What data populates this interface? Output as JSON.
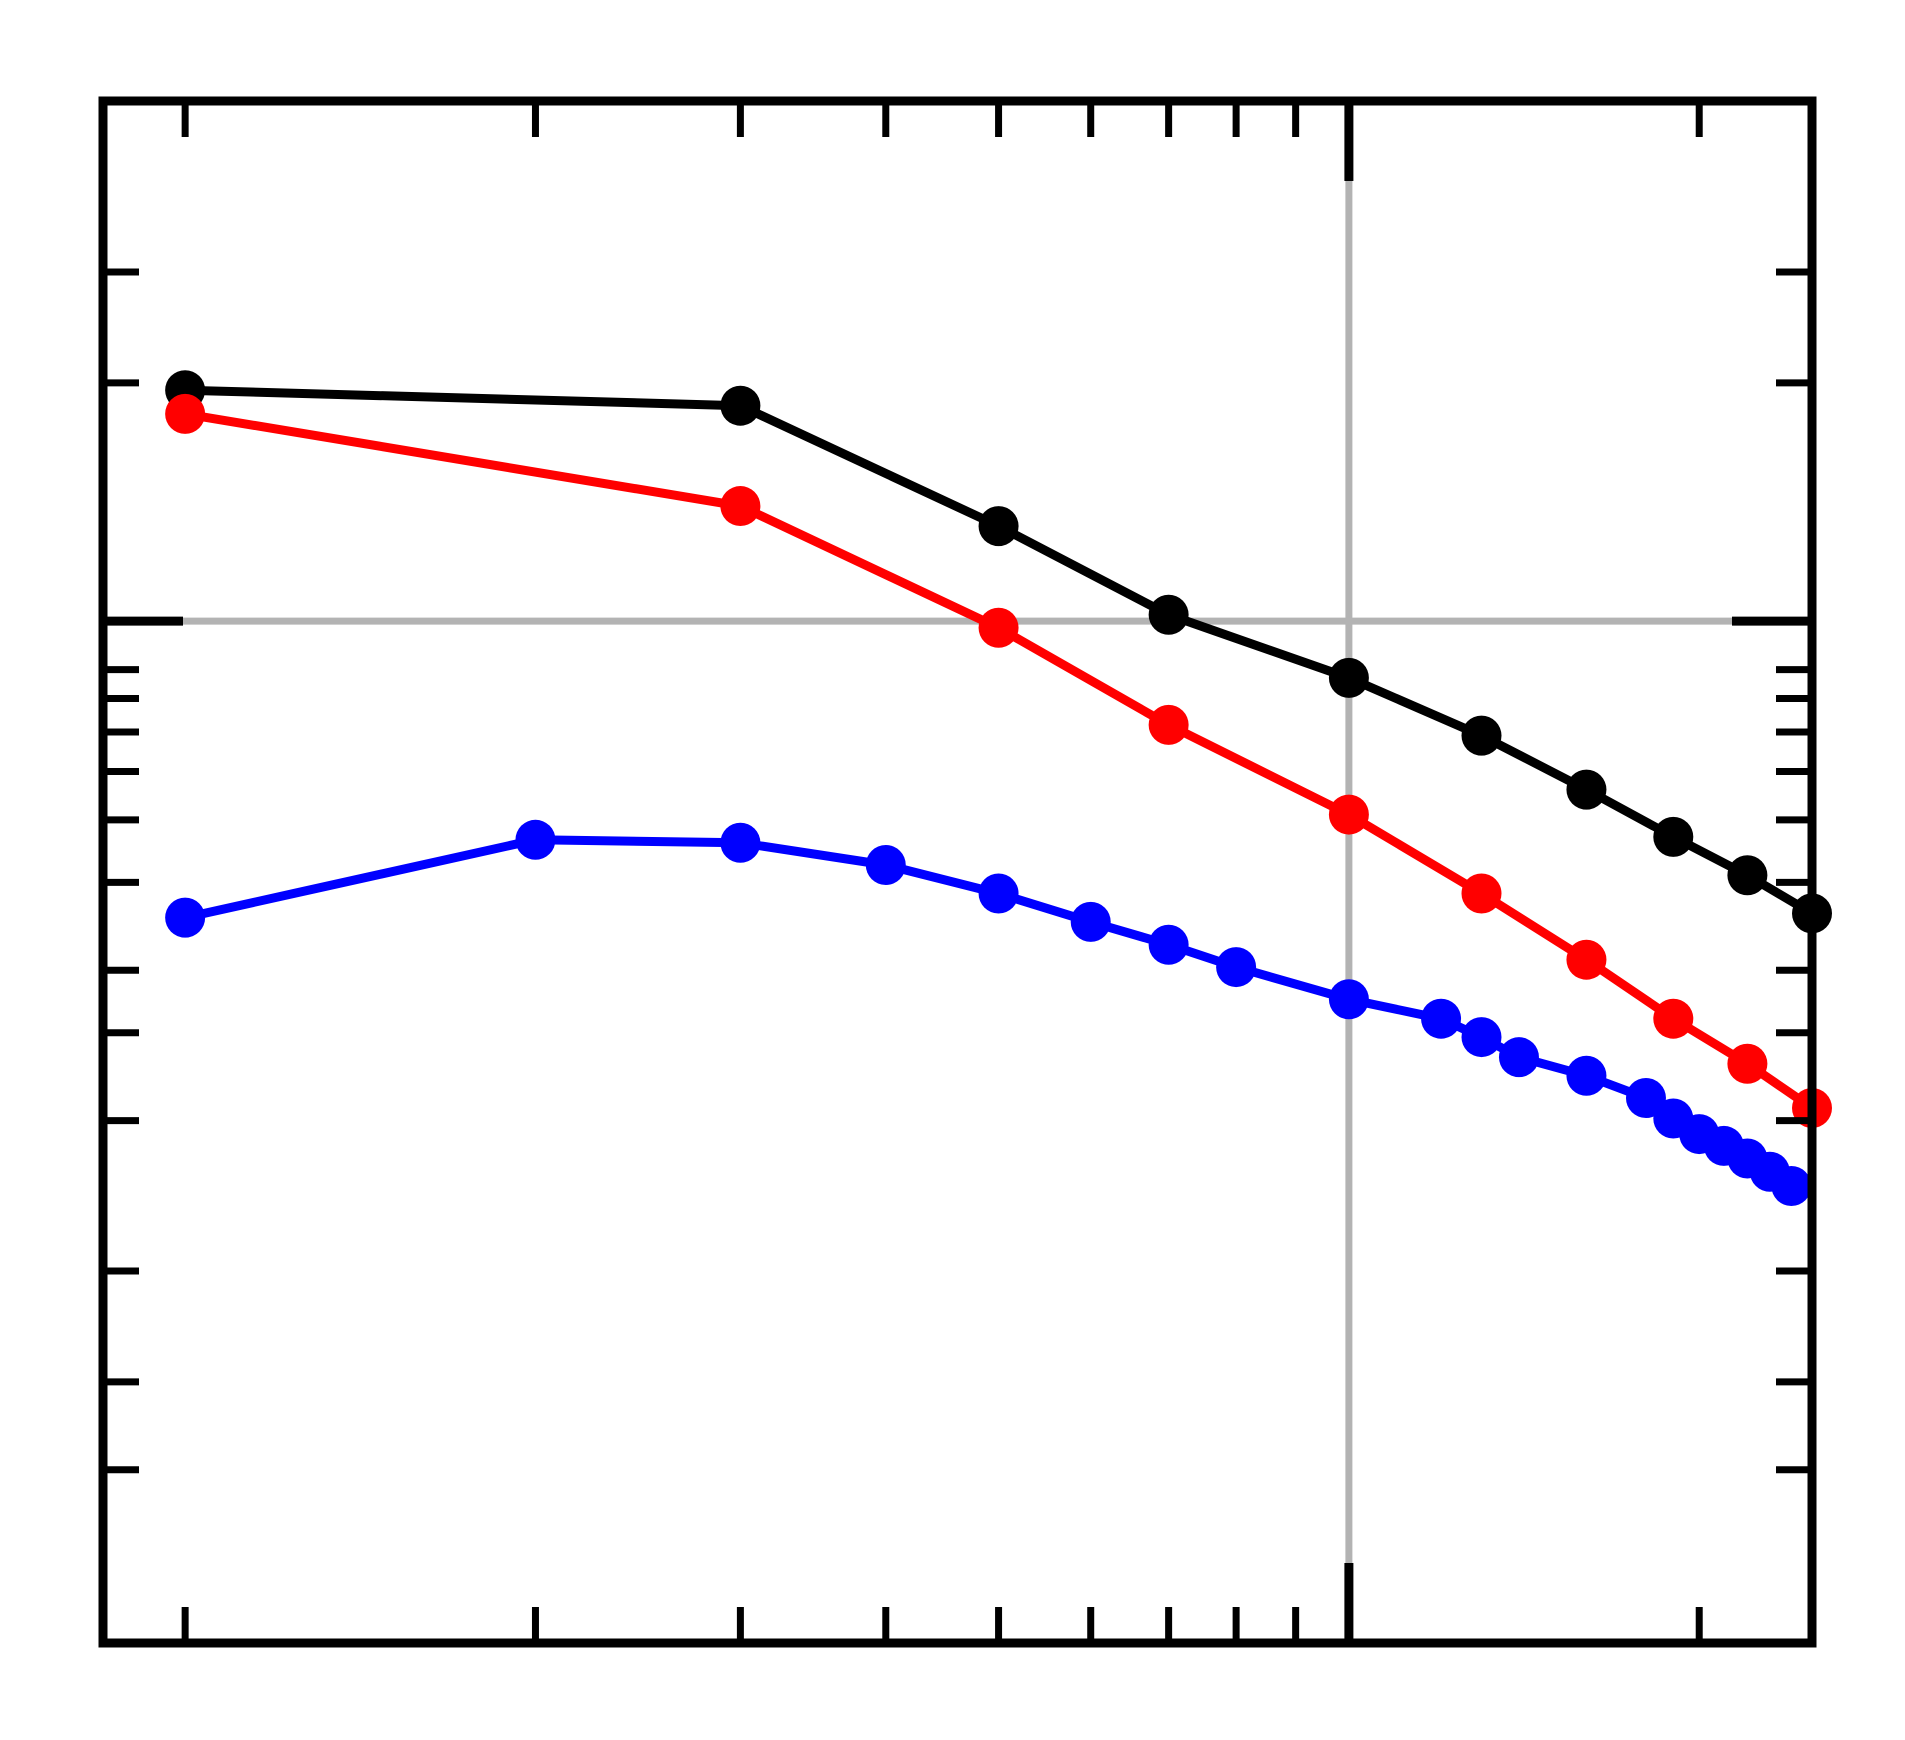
{
  "chart_data": {
    "type": "line",
    "title": "",
    "xlabel": "",
    "ylabel": "",
    "x_scale": "log",
    "y_scale": "log",
    "xlim": [
      0.85,
      25
    ],
    "ylim": [
      0.0009,
      1.1
    ],
    "grid": false,
    "reference_lines": {
      "x": 10,
      "y": 0.1
    },
    "x_ticks": {
      "major": [
        10
      ],
      "minor": [
        1,
        2,
        3,
        4,
        5,
        6,
        7,
        8,
        9,
        20
      ]
    },
    "y_ticks": {
      "major": [
        0.1
      ],
      "minor": [
        0.002,
        0.003,
        0.005,
        0.01,
        0.015,
        0.02,
        0.03,
        0.04,
        0.05,
        0.06,
        0.07,
        0.08,
        0.3,
        0.5
      ]
    },
    "series": [
      {
        "color": "#000000",
        "x": [
          1,
          3,
          5,
          7,
          10,
          13,
          16,
          19,
          22,
          25
        ],
        "y": [
          0.29,
          0.27,
          0.155,
          0.103,
          0.077,
          0.059,
          0.046,
          0.037,
          0.031,
          0.026
        ]
      },
      {
        "color": "#ff0000",
        "x": [
          1,
          3,
          5,
          7,
          10,
          13,
          16,
          19,
          22,
          25
        ],
        "y": [
          0.26,
          0.17,
          0.097,
          0.062,
          0.041,
          0.0285,
          0.021,
          0.016,
          0.013,
          0.0106
        ]
      },
      {
        "color": "#0000ff",
        "x": [
          1,
          2,
          3,
          4,
          5,
          6,
          7,
          8,
          10,
          12,
          13,
          14,
          16,
          18,
          19,
          20,
          21,
          22,
          23,
          24
        ],
        "y": [
          0.0255,
          0.0365,
          0.036,
          0.0325,
          0.0285,
          0.025,
          0.0225,
          0.0203,
          0.0175,
          0.016,
          0.0147,
          0.0134,
          0.0123,
          0.0111,
          0.0101,
          0.0094,
          0.0089,
          0.0084,
          0.0079,
          0.0074
        ]
      }
    ]
  }
}
